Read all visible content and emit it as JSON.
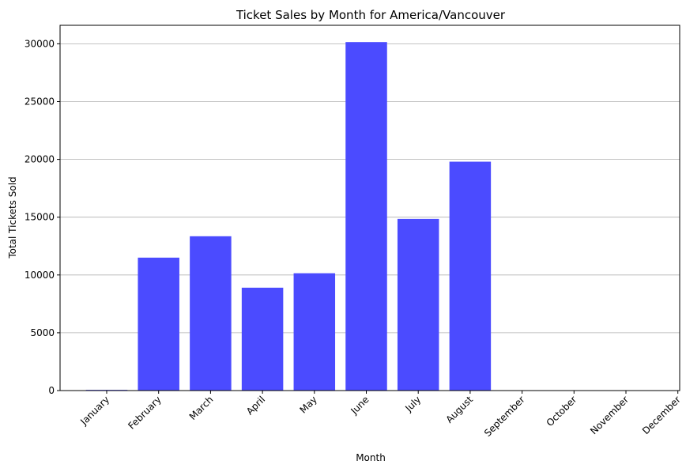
{
  "chart_data": {
    "type": "bar",
    "title": "Ticket Sales by Month for America/Vancouver",
    "xlabel": "Month",
    "ylabel": "Total Tickets Sold",
    "categories": [
      "January",
      "February",
      "March",
      "April",
      "May",
      "June",
      "July",
      "August",
      "September",
      "October",
      "November",
      "December"
    ],
    "values": [
      60,
      11500,
      13350,
      8900,
      10150,
      30150,
      14850,
      19800,
      0,
      0,
      0,
      0
    ],
    "ylim": [
      0,
      31600
    ],
    "yticks": [
      0,
      5000,
      10000,
      15000,
      20000,
      25000,
      30000
    ],
    "grid": "horizontal",
    "bar_color": "#4b4bff"
  }
}
